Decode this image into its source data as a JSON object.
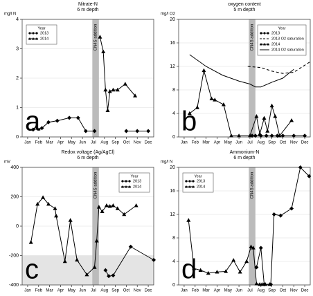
{
  "chart_data": [
    {
      "type": "line",
      "title": "Nitrate-N",
      "subtitle": "6 m depth",
      "ylabel": "mg/l N",
      "panel_label": "a",
      "annotation": "CN4S addition",
      "band": [
        6.9,
        7.5
      ],
      "legend_title": "Year",
      "legend": "top-left",
      "xlim": [
        0.5,
        12.5
      ],
      "ylim": [
        0,
        4
      ],
      "yticks": [
        0,
        1,
        2,
        3,
        4
      ],
      "xticks": [
        {
          "value": 1,
          "label": "Jan"
        },
        {
          "value": 2,
          "label": "Feb"
        },
        {
          "value": 3,
          "label": "Mar"
        },
        {
          "value": 4,
          "label": "Apr"
        },
        {
          "value": 5,
          "label": "May"
        },
        {
          "value": 6,
          "label": "Jun"
        },
        {
          "value": 7,
          "label": "Jul"
        },
        {
          "value": 8,
          "label": "Aug"
        },
        {
          "value": 9,
          "label": "Sep"
        },
        {
          "value": 10,
          "label": "Oct"
        },
        {
          "value": 11,
          "label": "Nov"
        },
        {
          "value": 12,
          "label": "Dec"
        }
      ],
      "series": [
        {
          "name": "2013",
          "color": "#000000",
          "marker": "diamond",
          "dash": false,
          "x": [
            1.5,
            2.3,
            2.9,
            3.7,
            4.8,
            5.6,
            6.3,
            7.1,
            null,
            10.0,
            11.0,
            12.0
          ],
          "values": [
            0.25,
            0.3,
            0.5,
            0.55,
            0.65,
            0.65,
            0.2,
            0.2,
            null,
            0.2,
            0.2,
            0.2
          ]
        },
        {
          "name": "2014",
          "color": "#000000",
          "marker": "triangle",
          "dash": false,
          "x": [
            7.6,
            7.9,
            8.1,
            8.3,
            8.5,
            8.8,
            9.2,
            9.9,
            10.8
          ],
          "values": [
            3.4,
            2.9,
            1.6,
            0.9,
            1.55,
            1.6,
            1.6,
            1.8,
            1.4
          ]
        }
      ]
    },
    {
      "type": "line",
      "title": "oxygen content",
      "subtitle": "5 m depth",
      "ylabel": "mg/l O2",
      "panel_label": "b",
      "annotation": "CN4S addition",
      "band": [
        6.9,
        7.5
      ],
      "legend_title": "Year",
      "legend": "top-right",
      "xlim": [
        0.5,
        12.5
      ],
      "ylim": [
        0,
        20
      ],
      "yticks": [
        0,
        4,
        8,
        12,
        16,
        20
      ],
      "xticks": [
        {
          "value": 1,
          "label": "Jan"
        },
        {
          "value": 2,
          "label": "Feb"
        },
        {
          "value": 3,
          "label": "Mar"
        },
        {
          "value": 4,
          "label": "Apr"
        },
        {
          "value": 5,
          "label": "May"
        },
        {
          "value": 6,
          "label": "Jun"
        },
        {
          "value": 7,
          "label": "Jul"
        },
        {
          "value": 8,
          "label": "Aug"
        },
        {
          "value": 9,
          "label": "Sep"
        },
        {
          "value": 10,
          "label": "Oct"
        },
        {
          "value": 11,
          "label": "Nov"
        },
        {
          "value": 12,
          "label": "Dec"
        }
      ],
      "series": [
        {
          "name": "2013",
          "color": "#000000",
          "marker": "diamond",
          "dash": false,
          "x": [
            7.2,
            7.5,
            8.0,
            8.5,
            9.0,
            9.5,
            10.0,
            11.0,
            12.0
          ],
          "values": [
            0.2,
            0.2,
            0.2,
            0.2,
            0.2,
            0.2,
            0.2,
            0.2,
            0.2
          ]
        },
        {
          "name": "2013 O2 saturation",
          "color": "#000000",
          "marker": "none",
          "dash": true,
          "x": [
            6.8,
            8.0,
            9.0,
            10.0,
            11.0,
            12.5
          ],
          "values": [
            12,
            11.8,
            11.2,
            10.8,
            11,
            12.8
          ]
        },
        {
          "name": "2014",
          "color": "#000000",
          "marker": "triangle",
          "dash": false,
          "x": [
            1.5,
            2.2,
            2.8,
            3.5,
            3.8,
            4.6,
            5.3,
            6.0,
            7.0,
            7.6,
            7.9,
            8.3,
            8.6,
            9.0,
            9.3,
            9.7,
            10.8
          ],
          "values": [
            4,
            5,
            11.3,
            6.5,
            6.3,
            5.5,
            0.2,
            0.2,
            0.2,
            3.5,
            0.5,
            3.2,
            1,
            5.3,
            3.5,
            0.2,
            2.8
          ]
        },
        {
          "name": "2014 O2 saturation",
          "color": "#000000",
          "marker": "none",
          "dash": false,
          "x": [
            1.5,
            3.0,
            4.5,
            6.0,
            7.0,
            7.5,
            8.0,
            9.0,
            10.0,
            11.0
          ],
          "values": [
            14,
            12,
            10.5,
            9.5,
            9,
            8.5,
            8.5,
            9.3,
            10,
            11.5
          ]
        }
      ]
    },
    {
      "type": "line",
      "title": "Redox voltage (Ag/AgCl)",
      "subtitle": "6 m depth",
      "ylabel": "mV",
      "panel_label": "c",
      "annotation": "CN4S addition",
      "band": [
        6.9,
        7.5
      ],
      "legend_title": "Year",
      "legend": "top-right",
      "shade_below": -200,
      "xlim": [
        0.5,
        12.5
      ],
      "ylim": [
        -400,
        400
      ],
      "yticks": [
        -400,
        -200,
        0,
        200,
        400
      ],
      "xticks": [
        {
          "value": 1,
          "label": "Jan"
        },
        {
          "value": 2,
          "label": "Feb"
        },
        {
          "value": 3,
          "label": "Mar"
        },
        {
          "value": 4,
          "label": "Apr"
        },
        {
          "value": 5,
          "label": "May"
        },
        {
          "value": 6,
          "label": "Jun"
        },
        {
          "value": 7,
          "label": "Jul"
        },
        {
          "value": 8,
          "label": "Aug"
        },
        {
          "value": 9,
          "label": "Sep"
        },
        {
          "value": 10,
          "label": "Oct"
        },
        {
          "value": 11,
          "label": "Nov"
        },
        {
          "value": 12,
          "label": "Dec"
        }
      ],
      "series": [
        {
          "name": "2013",
          "color": "#000000",
          "marker": "diamond",
          "dash": false,
          "x": [
            8.1,
            8.4,
            8.8,
            10.4,
            12.5
          ],
          "values": [
            -300,
            -340,
            -335,
            -140,
            -230
          ]
        },
        {
          "name": "2014",
          "color": "#000000",
          "marker": "triangle",
          "dash": false,
          "x": [
            1.3,
            1.9,
            2.4,
            2.9,
            3.5,
            3.6,
            4.4,
            4.9,
            5.5,
            6.4,
            7.1,
            7.3,
            7.5,
            7.8,
            8.2,
            8.5,
            8.8,
            9.2,
            9.8,
            10.9
          ],
          "values": [
            -110,
            150,
            195,
            150,
            120,
            70,
            -240,
            40,
            -230,
            -330,
            -280,
            -100,
            130,
            100,
            140,
            135,
            140,
            120,
            80,
            140
          ]
        }
      ]
    },
    {
      "type": "line",
      "title": "Ammonium-N",
      "subtitle": "6 m depth",
      "ylabel": "mg/l N",
      "panel_label": "d",
      "annotation": "CN4S addition",
      "band": [
        6.9,
        7.5
      ],
      "legend_title": "Year",
      "legend": "top-left",
      "xlim": [
        0.5,
        12.5
      ],
      "ylim": [
        0,
        20
      ],
      "yticks": [
        0,
        4,
        8,
        12,
        16,
        20
      ],
      "xticks": [
        {
          "value": 1,
          "label": "Jan"
        },
        {
          "value": 2,
          "label": "Feb"
        },
        {
          "value": 3,
          "label": "Mar"
        },
        {
          "value": 4,
          "label": "Apr"
        },
        {
          "value": 5,
          "label": "May"
        },
        {
          "value": 6,
          "label": "Jun"
        },
        {
          "value": 7,
          "label": "Jul"
        },
        {
          "value": 8,
          "label": "Aug"
        },
        {
          "value": 9,
          "label": "Sep"
        },
        {
          "value": 10,
          "label": "Oct"
        },
        {
          "value": 11,
          "label": "Nov"
        },
        {
          "value": 12,
          "label": "Dec"
        }
      ],
      "series": [
        {
          "name": "2013",
          "color": "#000000",
          "marker": "diamond",
          "dash": false,
          "x": [
            7.6,
            8.0,
            8.3,
            8.9,
            9.2,
            9.8,
            10.8,
            11.6,
            12.4
          ],
          "values": [
            3,
            6.3,
            0.1,
            0.1,
            12,
            11.8,
            13,
            20,
            18.5
          ]
        },
        {
          "name": "2014",
          "color": "#000000",
          "marker": "triangle",
          "dash": false,
          "x": [
            1.4,
            1.9,
            2.5,
            3.2,
            4.0,
            4.8,
            5.5,
            6.1,
            6.7,
            7.1,
            7.3,
            7.6,
            7.9,
            8.1,
            8.4,
            8.8
          ],
          "values": [
            11,
            2.8,
            2.5,
            2,
            2.2,
            2.3,
            4.2,
            2.2,
            4,
            6.5,
            6.3,
            0.2,
            0.1,
            0.1,
            0.1,
            0.1
          ]
        }
      ]
    }
  ]
}
